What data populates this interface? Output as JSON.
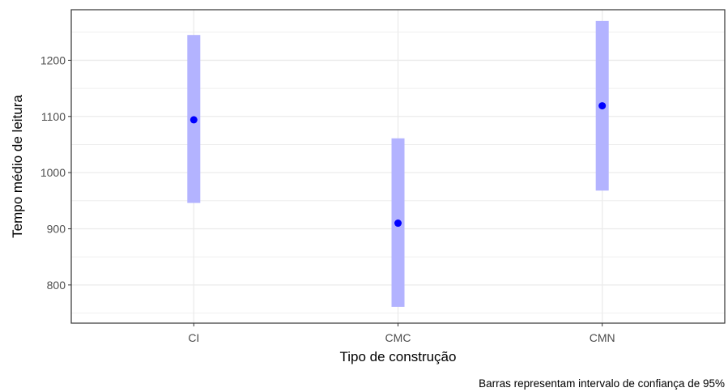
{
  "chart_data": {
    "type": "scatter",
    "title": "",
    "xlabel": "Tipo de construção",
    "ylabel": "Tempo médio de leitura",
    "caption": "Barras representam intervalo de confiança de 95%",
    "categories": [
      "CI",
      "CMC",
      "CMN"
    ],
    "points": [
      {
        "category": "CI",
        "mean": 1094,
        "ci_low": 946,
        "ci_high": 1245
      },
      {
        "category": "CMC",
        "mean": 910,
        "ci_low": 761,
        "ci_high": 1061
      },
      {
        "category": "CMN",
        "mean": 1119,
        "ci_low": 968,
        "ci_high": 1270
      }
    ],
    "y_ticks": [
      800,
      900,
      1000,
      1100,
      1200
    ],
    "ylim": [
      732,
      1290
    ],
    "grid": true,
    "colors": {
      "point": "#0000ff",
      "interval": "#b3b3ff",
      "grid": "#ebebeb",
      "panel_border": "#333333"
    }
  }
}
